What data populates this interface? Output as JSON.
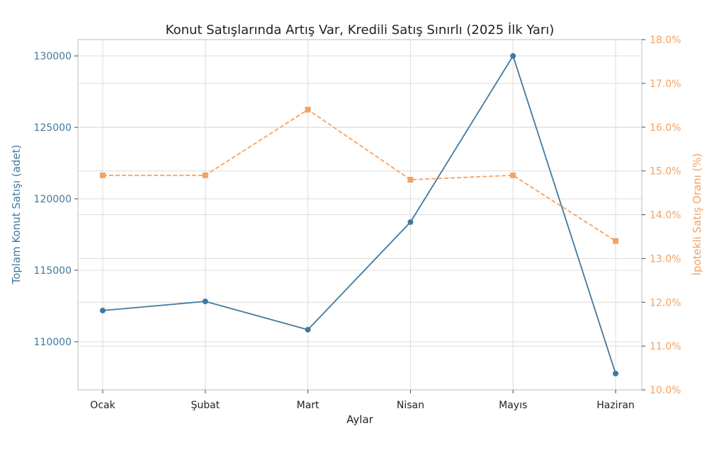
{
  "chart_data": {
    "type": "line",
    "title": "Konut Satışlarında Artış Var, Kredili Satış Sınırlı (2025 İlk Yarı)",
    "xlabel": "Aylar",
    "ylabel_left": "Toplam Konut Satışı (adet)",
    "ylabel_right": "İpotekli Satış Oranı (%)",
    "categories": [
      "Ocak",
      "Şubat",
      "Mart",
      "Nisan",
      "Mayıs",
      "Haziran"
    ],
    "ylim_left": [
      106630,
      131140
    ],
    "ylim_right": [
      10,
      18
    ],
    "yticks_left": [
      110000,
      115000,
      120000,
      125000,
      130000
    ],
    "yticks_right": [
      10,
      11,
      12,
      13,
      14,
      15,
      16,
      17,
      18
    ],
    "ytick_right_labels": [
      "10.0%",
      "11.0%",
      "12.0%",
      "13.0%",
      "14.0%",
      "15.0%",
      "16.0%",
      "17.0%",
      "18.0%"
    ],
    "grid": true,
    "series": [
      {
        "axis": "left",
        "color": "#41799e",
        "marker": "circle",
        "linestyle": "solid",
        "values": [
          112180,
          112820,
          110840,
          118370,
          130000,
          107770
        ]
      },
      {
        "axis": "right",
        "color": "#f4a261",
        "marker": "square",
        "linestyle": "dashed",
        "values": [
          14.9,
          14.9,
          16.4,
          14.8,
          14.9,
          13.4
        ]
      }
    ]
  },
  "colors": {
    "left_axis": "#41799e",
    "right_axis": "#f4a261"
  }
}
